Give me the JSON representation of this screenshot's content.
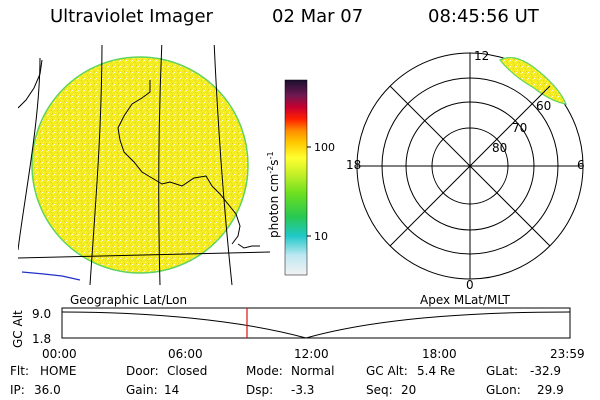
{
  "header": {
    "instrument": "Ultraviolet Imager",
    "date": "02 Mar 07",
    "time": "08:45:56 UT"
  },
  "geo_panel": {
    "label": "Geographic Lat/Lon"
  },
  "polar_panel": {
    "label": "Apex MLat/MLT",
    "mlt_labels": {
      "top": "12",
      "bottom": "0",
      "left": "18",
      "right": "6"
    },
    "lat_labels": [
      "60",
      "70",
      "80"
    ]
  },
  "colorbar": {
    "ylabel": "photon cm",
    "ylabel_sup1": "-2",
    "ylabel_mid": "s",
    "ylabel_sup2": "-1",
    "ticks": [
      "100",
      "10"
    ],
    "scale": "log"
  },
  "altitude_plot": {
    "ylabel": "GC Alt",
    "yticks": [
      "9.0",
      "1.8"
    ],
    "xticks": [
      "00:00",
      "06:00",
      "12:00",
      "18:00",
      "23:59"
    ]
  },
  "footer": {
    "flt": {
      "label": "Flt:",
      "value": "HOME"
    },
    "ip": {
      "label": "IP:",
      "value": "36.0"
    },
    "door": {
      "label": "Door:",
      "value": "Closed"
    },
    "gain": {
      "label": "Gain:",
      "value": "14"
    },
    "mode": {
      "label": "Mode:",
      "value": "Normal"
    },
    "dsp": {
      "label": "Dsp:",
      "value": "-3.3"
    },
    "gcalt": {
      "label": "GC Alt:",
      "value": "5.4 Re"
    },
    "seq": {
      "label": "Seq:",
      "value": "20"
    },
    "glat": {
      "label": "GLat:",
      "value": "-32.9"
    },
    "glon": {
      "label": "GLon:",
      "value": "29.9"
    }
  },
  "colors": {
    "image_fill": "#f2ea1a",
    "limb": "#5fd35f",
    "red_marker": "#e01010"
  }
}
